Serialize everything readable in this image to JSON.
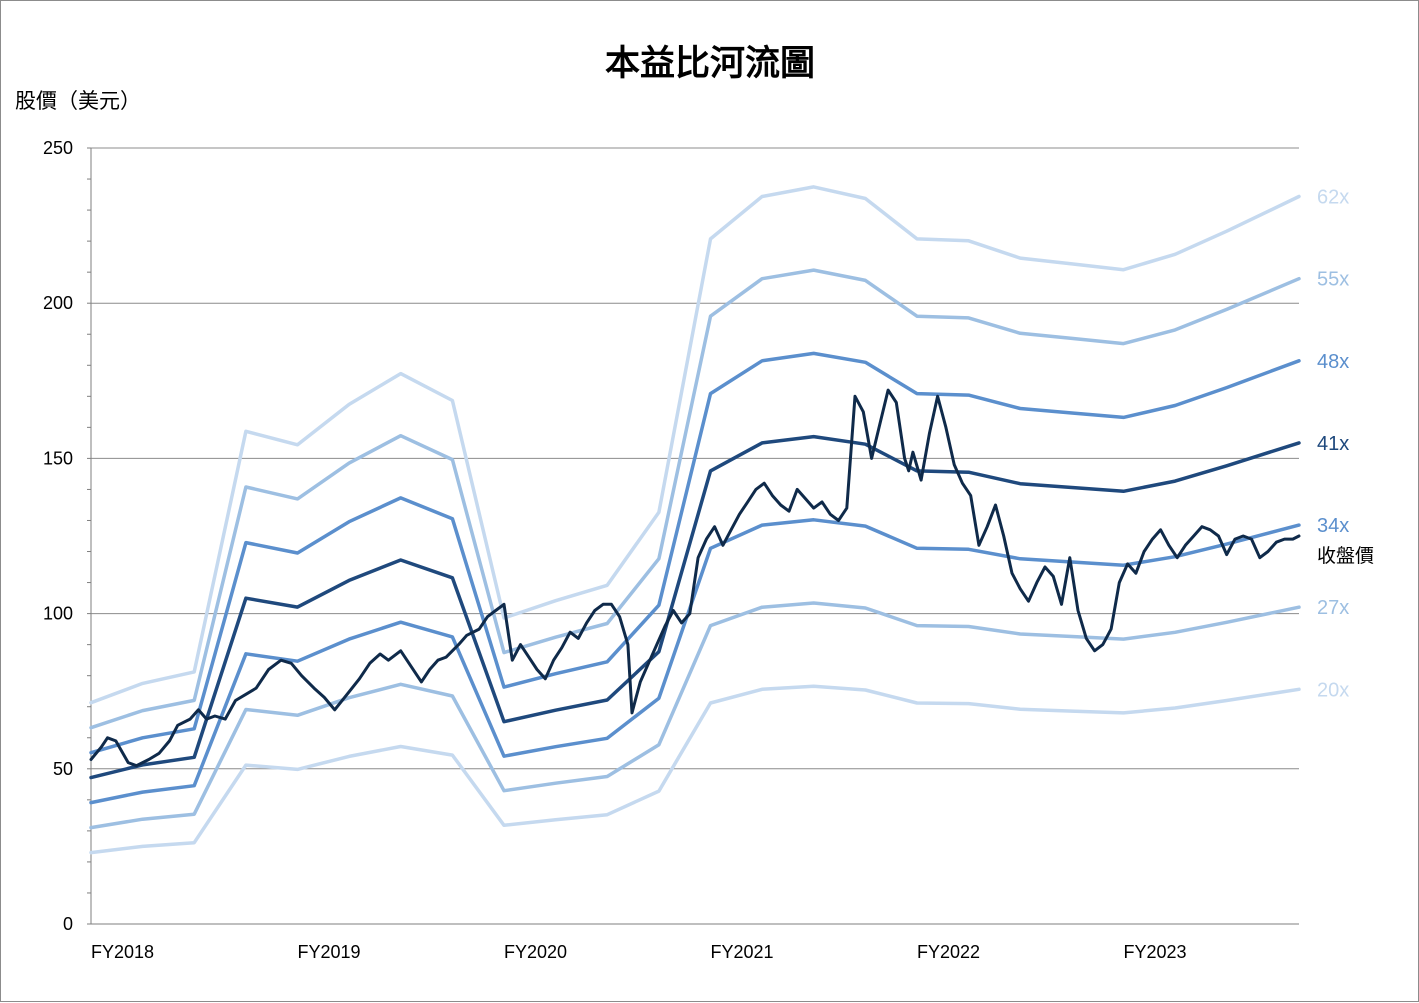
{
  "chart_data": {
    "type": "line",
    "title": "本益比河流圖",
    "ylabel": "股價（美元）",
    "xlabel": "",
    "ylim": [
      0,
      250
    ],
    "yticks": [
      0,
      50,
      100,
      150,
      200,
      250
    ],
    "x_range": [
      2018.0,
      2023.85
    ],
    "x_tick_labels": [
      {
        "x": 2018.0,
        "label": "FY2018"
      },
      {
        "x": 2019.0,
        "label": "FY2019"
      },
      {
        "x": 2020.0,
        "label": "FY2020"
      },
      {
        "x": 2021.0,
        "label": "FY2021"
      },
      {
        "x": 2022.0,
        "label": "FY2022"
      },
      {
        "x": 2023.0,
        "label": "FY2023"
      }
    ],
    "grid": "horizontal",
    "eps_x": [
      2018.0,
      2018.25,
      2018.5,
      2018.75,
      2019.0,
      2019.25,
      2019.5,
      2019.75,
      2020.0,
      2020.25,
      2020.5,
      2020.75,
      2021.0,
      2021.25,
      2021.5,
      2021.75,
      2022.0,
      2022.25,
      2022.5,
      2022.75,
      2023.0,
      2023.25,
      2023.5,
      2023.85
    ],
    "eps": [
      1.15,
      1.25,
      1.31,
      2.56,
      2.49,
      2.7,
      2.86,
      2.72,
      1.59,
      1.68,
      1.76,
      2.14,
      3.56,
      3.78,
      3.83,
      3.77,
      3.56,
      3.55,
      3.46,
      3.43,
      3.4,
      3.48,
      3.6,
      3.78
    ],
    "series": [
      {
        "name": "62x",
        "multiple": 62,
        "color": "#c5d9ef"
      },
      {
        "name": "55x",
        "multiple": 55,
        "color": "#9dbfe2"
      },
      {
        "name": "48x",
        "multiple": 48,
        "color": "#5b8fcd"
      },
      {
        "name": "41x",
        "multiple": 41,
        "color": "#1f497d"
      },
      {
        "name": "34x",
        "multiple": 34,
        "color": "#5b8fcd"
      },
      {
        "name": "27x",
        "multiple": 27,
        "color": "#9dbfe2"
      },
      {
        "name": "20x",
        "multiple": 20,
        "color": "#c5d9ef"
      }
    ],
    "price": {
      "name": "收盤價",
      "color": "#0f2a4a",
      "x": [
        2018.0,
        2018.05,
        2018.08,
        2018.12,
        2018.18,
        2018.22,
        2018.28,
        2018.33,
        2018.38,
        2018.42,
        2018.48,
        2018.52,
        2018.56,
        2018.6,
        2018.65,
        2018.7,
        2018.75,
        2018.8,
        2018.86,
        2018.92,
        2018.97,
        2019.02,
        2019.08,
        2019.13,
        2019.18,
        2019.24,
        2019.3,
        2019.35,
        2019.4,
        2019.44,
        2019.5,
        2019.55,
        2019.6,
        2019.64,
        2019.68,
        2019.72,
        2019.78,
        2019.82,
        2019.88,
        2019.92,
        2019.96,
        2020.0,
        2020.04,
        2020.08,
        2020.12,
        2020.16,
        2020.2,
        2020.24,
        2020.28,
        2020.32,
        2020.36,
        2020.4,
        2020.44,
        2020.48,
        2020.52,
        2020.56,
        2020.6,
        2020.62,
        2020.64,
        2020.66,
        2020.7,
        2020.74,
        2020.78,
        2020.82,
        2020.86,
        2020.9,
        2020.94,
        2020.98,
        2021.02,
        2021.06,
        2021.1,
        2021.14,
        2021.18,
        2021.22,
        2021.26,
        2021.3,
        2021.34,
        2021.38,
        2021.42,
        2021.46,
        2021.5,
        2021.54,
        2021.58,
        2021.62,
        2021.66,
        2021.7,
        2021.74,
        2021.78,
        2021.82,
        2021.86,
        2021.9,
        2021.94,
        2021.96,
        2021.98,
        2022.02,
        2022.06,
        2022.1,
        2022.14,
        2022.18,
        2022.22,
        2022.26,
        2022.3,
        2022.34,
        2022.38,
        2022.42,
        2022.46,
        2022.5,
        2022.54,
        2022.58,
        2022.62,
        2022.66,
        2022.7,
        2022.74,
        2022.78,
        2022.82,
        2022.86,
        2022.9,
        2022.94,
        2022.98,
        2023.02,
        2023.06,
        2023.1,
        2023.14,
        2023.18,
        2023.22,
        2023.26,
        2023.3,
        2023.34,
        2023.38,
        2023.42,
        2023.46,
        2023.5,
        2023.54,
        2023.58,
        2023.62,
        2023.66,
        2023.7,
        2023.74,
        2023.78,
        2023.82,
        2023.85
      ],
      "values": [
        53,
        57,
        60,
        59,
        52,
        51,
        53,
        55,
        59,
        64,
        66,
        69,
        66,
        67,
        66,
        72,
        74,
        76,
        82,
        85,
        84,
        80,
        76,
        73,
        69,
        74,
        79,
        84,
        87,
        85,
        88,
        83,
        78,
        82,
        85,
        86,
        90,
        93,
        95,
        99,
        101,
        103,
        85,
        90,
        86,
        82,
        79,
        85,
        89,
        94,
        92,
        97,
        101,
        103,
        103,
        99,
        90,
        68,
        73,
        78,
        84,
        90,
        96,
        101,
        97,
        100,
        118,
        124,
        128,
        122,
        127,
        132,
        136,
        140,
        142,
        138,
        135,
        133,
        140,
        137,
        134,
        136,
        132,
        130,
        134,
        170,
        165,
        150,
        161,
        172,
        168,
        150,
        146,
        152,
        143,
        158,
        170,
        160,
        148,
        142,
        138,
        122,
        128,
        135,
        125,
        113,
        108,
        104,
        110,
        115,
        112,
        103,
        118,
        101,
        92,
        88,
        90,
        95,
        110,
        116,
        113,
        120,
        124,
        127,
        122,
        118,
        122,
        125,
        128,
        127,
        125,
        119,
        124,
        125,
        124,
        118,
        120,
        123,
        124,
        124,
        125
      ]
    }
  }
}
